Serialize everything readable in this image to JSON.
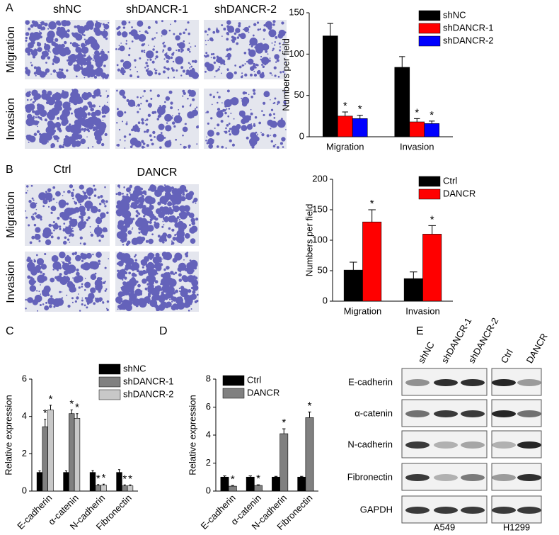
{
  "chart_data": [
    {
      "type": "bar",
      "y_label": "Numbers per field",
      "categories": [
        "Migration",
        "Invasion"
      ],
      "series": [
        {
          "name": "shNC",
          "color": "#000000",
          "values": [
            122,
            84
          ],
          "errors": [
            15,
            13
          ],
          "significance": [
            null,
            null
          ]
        },
        {
          "name": "shDANCR-1",
          "color": "#ff0000",
          "values": [
            25,
            18
          ],
          "errors": [
            5,
            4
          ],
          "significance": [
            "*",
            "*"
          ]
        },
        {
          "name": "shDANCR-2",
          "color": "#0000ff",
          "values": [
            22,
            16
          ],
          "errors": [
            4,
            3
          ],
          "significance": [
            "*",
            "*"
          ]
        }
      ],
      "ylim": [
        0,
        150
      ],
      "yticks": [
        0,
        50,
        100,
        150
      ]
    },
    {
      "type": "bar",
      "y_label": "Numbers per field",
      "categories": [
        "Migration",
        "Invasion"
      ],
      "series": [
        {
          "name": "Ctrl",
          "color": "#000000",
          "values": [
            51,
            37
          ],
          "errors": [
            13,
            11
          ],
          "significance": [
            null,
            null
          ]
        },
        {
          "name": "DANCR",
          "color": "#ff0000",
          "values": [
            130,
            110
          ],
          "errors": [
            20,
            14
          ],
          "significance": [
            "*",
            "*"
          ]
        }
      ],
      "ylim": [
        0,
        200
      ],
      "yticks": [
        0,
        50,
        100,
        150,
        200
      ]
    },
    {
      "type": "bar",
      "y_label": "Relative expression",
      "categories": [
        "E-cadherin",
        "α-catenin",
        "N-cadherin",
        "Fibronectin"
      ],
      "series": [
        {
          "name": "shNC",
          "color": "#000000",
          "values": [
            1,
            1,
            1,
            1
          ],
          "errors": [
            0.08,
            0.08,
            0.1,
            0.15
          ],
          "significance": [
            null,
            null,
            null,
            null
          ]
        },
        {
          "name": "shDANCR-1",
          "color": "#808080",
          "values": [
            3.45,
            4.15,
            0.3,
            0.28
          ],
          "errors": [
            0.4,
            0.2,
            0.05,
            0.05
          ],
          "significance": [
            "*",
            "*",
            "*",
            "*"
          ]
        },
        {
          "name": "shDANCR-2",
          "color": "#c8c8c8",
          "values": [
            4.35,
            3.9,
            0.32,
            0.28
          ],
          "errors": [
            0.25,
            0.25,
            0.05,
            0.05
          ],
          "significance": [
            "*",
            "*",
            "*",
            "*"
          ]
        }
      ],
      "ylim": [
        0,
        6
      ],
      "yticks": [
        0,
        2,
        4,
        6
      ]
    },
    {
      "type": "bar",
      "y_label": "Relative expression",
      "categories": [
        "E-cadherin",
        "α-catenin",
        "N-cadherin",
        "Fibronectin"
      ],
      "series": [
        {
          "name": "Ctrl",
          "color": "#000000",
          "values": [
            1,
            1,
            1,
            1
          ],
          "errors": [
            0.08,
            0.08,
            0.05,
            0.05
          ],
          "significance": [
            null,
            null,
            null,
            null
          ]
        },
        {
          "name": "DANCR",
          "color": "#808080",
          "values": [
            0.35,
            0.4,
            4.1,
            5.25
          ],
          "errors": [
            0.05,
            0.05,
            0.35,
            0.4
          ],
          "significance": [
            "*",
            "*",
            "*",
            "*"
          ]
        }
      ],
      "ylim": [
        0,
        8
      ],
      "yticks": [
        0,
        2,
        4,
        6,
        8
      ]
    }
  ],
  "figure": {
    "panels": [
      "A",
      "B",
      "C",
      "D",
      "E"
    ],
    "panel_a": {
      "columns": [
        "shNC",
        "shDANCR-1",
        "shDANCR-2"
      ],
      "rows": [
        "Migration",
        "Invasion"
      ]
    },
    "panel_b": {
      "columns": [
        "Ctrl",
        "DANCR"
      ],
      "rows": [
        "Migration",
        "Invasion"
      ]
    },
    "blot": {
      "columns": [
        "shNC",
        "shDANCR-1",
        "shDANCR-2",
        "Ctrl",
        "DANCR"
      ],
      "rows": [
        "E-cadherin",
        "α-catenin",
        "N-cadherin",
        "Fibronectin",
        "GAPDH"
      ],
      "cell_lines": [
        "A549",
        "H1299"
      ]
    }
  }
}
